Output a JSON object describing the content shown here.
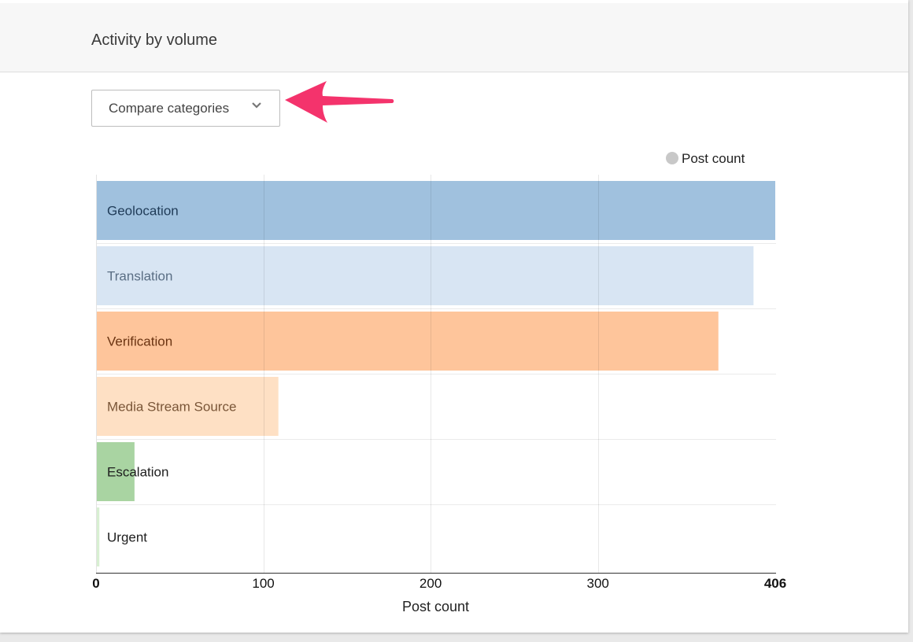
{
  "header": {
    "title": "Activity by volume"
  },
  "dropdown": {
    "label": "Compare categories",
    "icon": "chevron-down-icon"
  },
  "annotation": {
    "icon": "pointer-arrow-icon",
    "color": "#f4336c"
  },
  "chart_data": {
    "type": "bar",
    "orientation": "horizontal",
    "categories": [
      "Geolocation",
      "Translation",
      "Verification",
      "Media Stream Source",
      "Escalation",
      "Urgent"
    ],
    "values": [
      406,
      393,
      372,
      109,
      23,
      2
    ],
    "colors": [
      "#a0c1de",
      "#d8e5f3",
      "#fec59b",
      "#fee0c4",
      "#a9d4a2",
      "#d8efd2"
    ],
    "label_colors": [
      "#1f3b57",
      "#5a6e84",
      "#6b3412",
      "#7a5638",
      "#1d1d1d",
      "#1d1d1d"
    ],
    "series": [
      {
        "name": "Post count",
        "values": [
          406,
          393,
          372,
          109,
          23,
          2
        ]
      }
    ],
    "legend": {
      "label": "Post count",
      "position": "top-right",
      "color": "#c8c8c8"
    },
    "xlabel": "Post count",
    "xlim": [
      0,
      406
    ],
    "x_ticks": [
      {
        "value": 0,
        "label": "0",
        "bold": true
      },
      {
        "value": 100,
        "label": "100",
        "bold": false
      },
      {
        "value": 200,
        "label": "200",
        "bold": false
      },
      {
        "value": 300,
        "label": "300",
        "bold": false
      },
      {
        "value": 406,
        "label": "406",
        "bold": true
      }
    ],
    "grid": true
  }
}
